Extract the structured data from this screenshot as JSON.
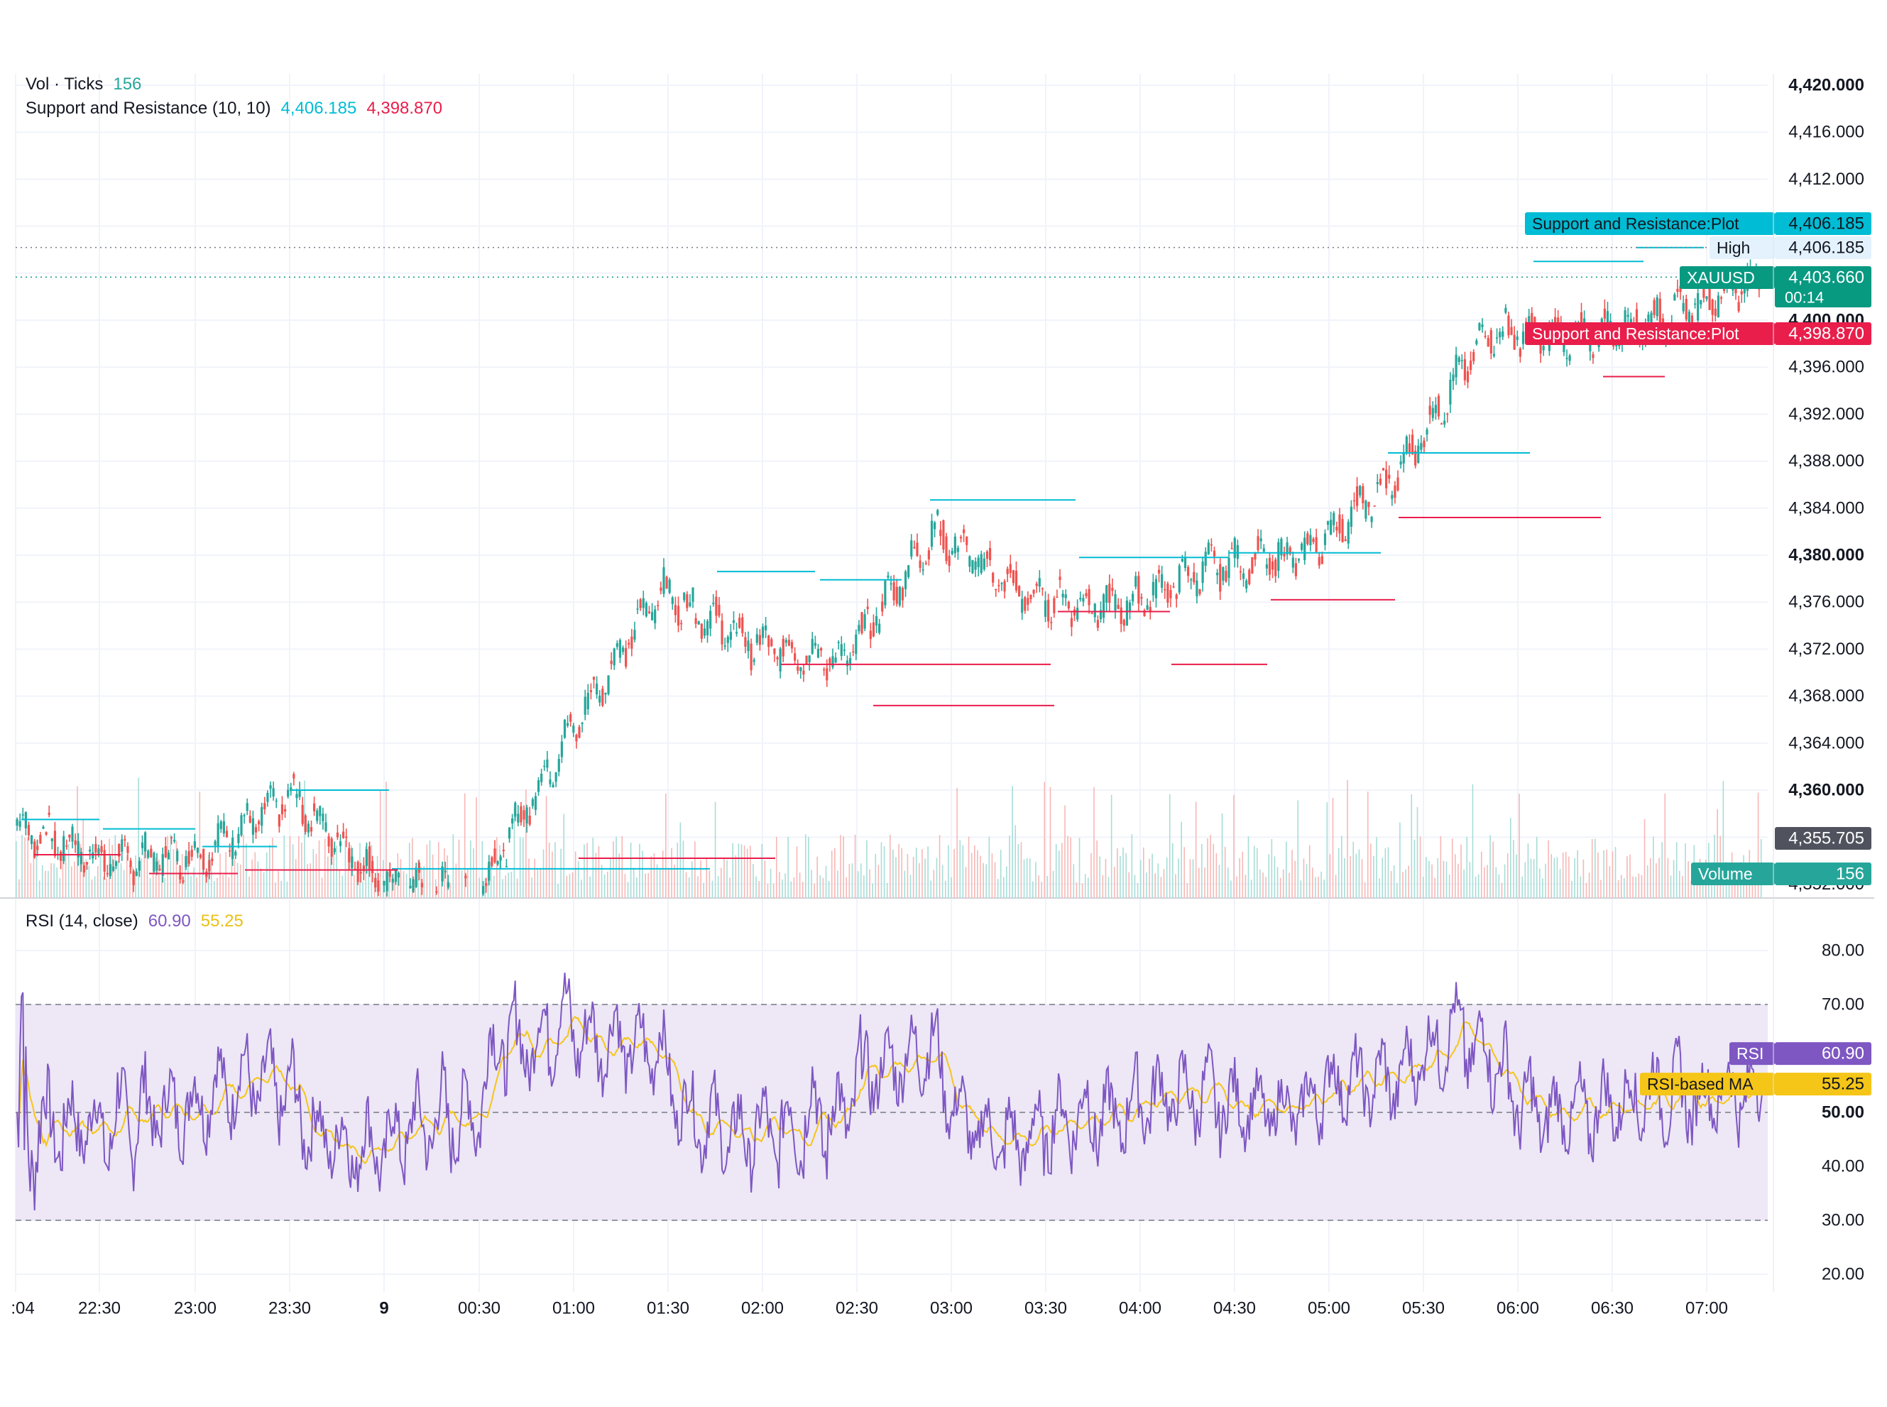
{
  "legend": {
    "vol_label": "Vol · Ticks",
    "vol_value": "156",
    "sr_label": "Support and Resistance (10, 10)",
    "sr_resistance": "4,406.185",
    "sr_support": "4,398.870",
    "rsi_label": "RSI (14, close)",
    "rsi_value": "60.90",
    "rsi_ma_value": "55.25"
  },
  "price_axis": {
    "ticks": [
      "4,420.000",
      "4,416.000",
      "4,412.000",
      "4,400.000",
      "4,396.000",
      "4,392.000",
      "4,388.000",
      "4,384.000",
      "4,380.000",
      "4,376.000",
      "4,372.000",
      "4,368.000",
      "4,364.000",
      "4,360.000",
      "4,352.000"
    ],
    "bold_ticks": [
      "4,420.000",
      "4,400.000",
      "4,380.000",
      "4,360.000"
    ]
  },
  "price_labels": {
    "resistance_name": "Support and Resistance:Plot",
    "resistance_value": "4,406.185",
    "high_name": "High",
    "high_value": "4,406.185",
    "symbol": "XAUUSD",
    "last_price": "4,403.660",
    "countdown": "00:14",
    "support_name": "Support and Resistance:Plot",
    "support_value": "4,398.870",
    "crosshair_value": "4,355.705",
    "volume_name": "Volume",
    "volume_value": "156"
  },
  "rsi_axis": {
    "ticks": [
      "80.00",
      "70.00",
      "50.00",
      "40.00",
      "30.00",
      "20.00"
    ],
    "bold_ticks": [
      "50.00"
    ]
  },
  "rsi_labels": {
    "rsi_name": "RSI",
    "rsi_value": "60.90",
    "ma_name": "RSI-based MA",
    "ma_value": "55.25"
  },
  "time_axis": {
    "labels": [
      ":04",
      "22:30",
      "23:00",
      "23:30",
      "9",
      "00:30",
      "01:00",
      "01:30",
      "02:00",
      "02:30",
      "03:00",
      "03:30",
      "04:00",
      "04:30",
      "05:00",
      "05:30",
      "06:00",
      "06:30",
      "07:00"
    ],
    "bold": [
      "9"
    ]
  },
  "colors": {
    "up": "#26a69a",
    "down": "#ef5350",
    "resistance": "#00bcd4",
    "support": "#e91e4b",
    "rsi_line": "#7e57c2",
    "rsi_ma": "#f5c518",
    "rsi_band": "#ede7f6",
    "last_price": "#089981"
  },
  "chart_data": [
    {
      "type": "candlestick",
      "symbol": "XAUUSD",
      "x": [
        ":04",
        "22:30",
        "23:00",
        "23:30",
        "9",
        "00:30",
        "01:00",
        "01:30",
        "02:00",
        "02:30",
        "03:00",
        "03:30",
        "04:00",
        "04:30",
        "05:00",
        "05:30",
        "06:00",
        "06:30",
        "07:00"
      ],
      "close_path": [
        {
          "t": ":04",
          "price": 4357.0
        },
        {
          "t": "22:30",
          "price": 4354.0
        },
        {
          "t": "23:00",
          "price": 4354.5
        },
        {
          "t": "23:30",
          "price": 4359.5
        },
        {
          "t": "9",
          "price": 4352.0
        },
        {
          "t": "00:30",
          "price": 4351.0
        },
        {
          "t": "01:00",
          "price": 4364.5
        },
        {
          "t": "01:30",
          "price": 4377.0
        },
        {
          "t": "02:00",
          "price": 4372.5
        },
        {
          "t": "02:30",
          "price": 4371.0
        },
        {
          "t": "03:00",
          "price": 4382.0
        },
        {
          "t": "03:30",
          "price": 4376.5
        },
        {
          "t": "04:00",
          "price": 4375.5
        },
        {
          "t": "04:30",
          "price": 4379.0
        },
        {
          "t": "05:00",
          "price": 4380.0
        },
        {
          "t": "05:30",
          "price": 4386.5
        },
        {
          "t": "06:00",
          "price": 4399.0
        },
        {
          "t": "06:30",
          "price": 4398.5
        },
        {
          "t": "07:00",
          "price": 4400.5
        }
      ],
      "last_price": 4403.66,
      "high": 4406.185,
      "ylim": [
        4350,
        4420
      ]
    },
    {
      "type": "bar",
      "series": [
        {
          "name": "Volume"
        }
      ],
      "last_value": 156
    },
    {
      "type": "line",
      "series": [
        {
          "name": "RSI",
          "last_value": 60.9
        },
        {
          "name": "RSI-based MA",
          "last_value": 55.25
        }
      ],
      "bands": [
        30,
        50,
        70
      ],
      "ylim": [
        20,
        80
      ]
    }
  ]
}
